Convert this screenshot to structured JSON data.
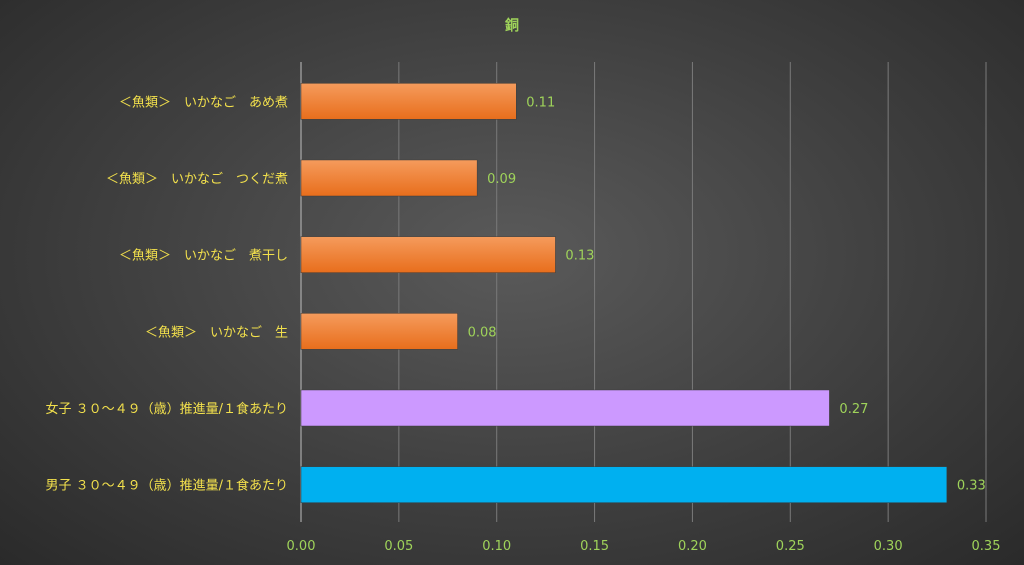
{
  "colors": {
    "text_yellow": "#f2e04c",
    "text_green": "#9fd35a",
    "grid": "#7a7a7a",
    "axis": "#bfbfbf",
    "orange": "#f07b2a",
    "orange_top": "#f59b5c",
    "purple": "#cc99ff",
    "cyan": "#00b0f0"
  },
  "chart_data": {
    "type": "bar",
    "orientation": "horizontal",
    "title": "銅",
    "categories": [
      "＜魚類＞　いかなご　あめ煮",
      "＜魚類＞　いかなご　つくだ煮",
      "＜魚類＞　いかなご　煮干し",
      "＜魚類＞　いかなご　生",
      "女子 ３０～４９（歳）推進量/１食あたり",
      "男子 ３０～４９（歳）推進量/１食あたり"
    ],
    "values": [
      0.11,
      0.09,
      0.13,
      0.08,
      0.27,
      0.33
    ],
    "value_labels": [
      "0.11",
      "0.09",
      "0.13",
      "0.08",
      "0.27",
      "0.33"
    ],
    "bar_colors": [
      "orange",
      "orange",
      "orange",
      "orange",
      "purple",
      "cyan"
    ],
    "xlim": [
      0,
      0.35
    ],
    "xticks": [
      0,
      0.05,
      0.1,
      0.15,
      0.2,
      0.25,
      0.3,
      0.35
    ],
    "xtick_labels": [
      "0.00",
      "0.05",
      "0.10",
      "0.15",
      "0.20",
      "0.25",
      "0.30",
      "0.35"
    ],
    "grid": "vertical",
    "legend": "none"
  }
}
